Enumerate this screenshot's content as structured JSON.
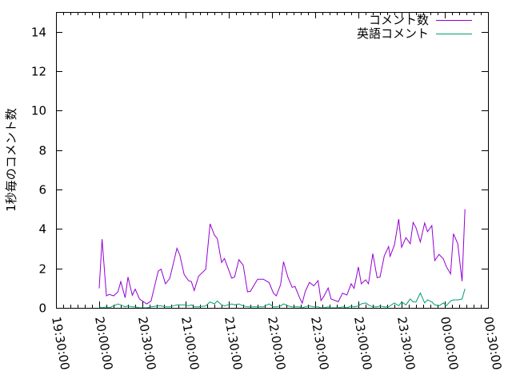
{
  "chart_data": {
    "type": "line",
    "title": "",
    "xlabel": "",
    "ylabel": "1秒毎のコメント数",
    "ylim": [
      0,
      15
    ],
    "yticks": [
      0,
      2,
      4,
      6,
      8,
      10,
      12,
      14
    ],
    "xlim": [
      "19:30:00",
      "00:30:00"
    ],
    "xticks": [
      "19:30:00",
      "20:00:00",
      "20:30:00",
      "21:00:00",
      "21:30:00",
      "22:00:00",
      "22:30:00",
      "23:00:00",
      "23:30:00",
      "00:00:00",
      "00:30:00"
    ],
    "grid": false,
    "legend_position": "top-right",
    "series": [
      {
        "name": "コメント数",
        "color": "#9400d3",
        "points": [
          [
            "20:00",
            0.99
          ],
          [
            "20:02",
            3.48
          ],
          [
            "20:05",
            0.61
          ],
          [
            "20:07",
            0.68
          ],
          [
            "20:10",
            0.61
          ],
          [
            "20:13",
            0.81
          ],
          [
            "20:15",
            1.33
          ],
          [
            "20:18",
            0.51
          ],
          [
            "20:20",
            1.56
          ],
          [
            "20:23",
            0.64
          ],
          [
            "20:25",
            0.95
          ],
          [
            "20:28",
            0.45
          ],
          [
            "20:33",
            0.2
          ],
          [
            "20:36",
            0.34
          ],
          [
            "20:41",
            1.87
          ],
          [
            "20:43",
            1.96
          ],
          [
            "20:46",
            1.22
          ],
          [
            "20:49",
            1.49
          ],
          [
            "20:54",
            3.02
          ],
          [
            "20:56",
            2.67
          ],
          [
            "20:59",
            1.69
          ],
          [
            "21:02",
            1.38
          ],
          [
            "21:04",
            1.33
          ],
          [
            "21:06",
            0.88
          ],
          [
            "21:09",
            1.6
          ],
          [
            "21:14",
            1.96
          ],
          [
            "21:17",
            4.26
          ],
          [
            "21:20",
            3.69
          ],
          [
            "21:22",
            3.52
          ],
          [
            "21:25",
            2.3
          ],
          [
            "21:27",
            2.5
          ],
          [
            "21:32",
            1.51
          ],
          [
            "21:34",
            1.56
          ],
          [
            "21:37",
            2.44
          ],
          [
            "21:40",
            2.16
          ],
          [
            "21:43",
            0.81
          ],
          [
            "21:45",
            0.84
          ],
          [
            "21:50",
            1.45
          ],
          [
            "21:54",
            1.45
          ],
          [
            "21:58",
            1.28
          ],
          [
            "22:01",
            0.74
          ],
          [
            "22:03",
            0.61
          ],
          [
            "22:06",
            1.18
          ],
          [
            "22:08",
            2.34
          ],
          [
            "22:11",
            1.56
          ],
          [
            "22:14",
            1.04
          ],
          [
            "22:16",
            1.08
          ],
          [
            "22:19",
            0.54
          ],
          [
            "22:21",
            0.24
          ],
          [
            "22:23",
            0.81
          ],
          [
            "22:26",
            1.29
          ],
          [
            "22:29",
            1.12
          ],
          [
            "22:32",
            1.38
          ],
          [
            "22:34",
            0.37
          ],
          [
            "22:36",
            0.58
          ],
          [
            "22:39",
            1.01
          ],
          [
            "22:41",
            0.45
          ],
          [
            "22:46",
            0.31
          ],
          [
            "22:49",
            0.74
          ],
          [
            "22:52",
            0.65
          ],
          [
            "22:55",
            1.22
          ],
          [
            "22:57",
            0.99
          ],
          [
            "23:00",
            2.07
          ],
          [
            "23:02",
            1.22
          ],
          [
            "23:05",
            1.42
          ],
          [
            "23:07",
            1.22
          ],
          [
            "23:10",
            2.75
          ],
          [
            "23:13",
            1.53
          ],
          [
            "23:15",
            1.56
          ],
          [
            "23:18",
            2.64
          ],
          [
            "23:21",
            3.11
          ],
          [
            "23:22",
            2.61
          ],
          [
            "23:25",
            3.18
          ],
          [
            "23:28",
            4.5
          ],
          [
            "23:30",
            3.07
          ],
          [
            "23:33",
            3.56
          ],
          [
            "23:36",
            3.25
          ],
          [
            "23:38",
            4.33
          ],
          [
            "23:40",
            4.06
          ],
          [
            "23:43",
            3.34
          ],
          [
            "23:46",
            4.3
          ],
          [
            "23:48",
            3.86
          ],
          [
            "23:51",
            4.17
          ],
          [
            "23:53",
            2.39
          ],
          [
            "23:56",
            2.71
          ],
          [
            "23:59",
            2.48
          ],
          [
            "00:01",
            2.1
          ],
          [
            "00:04",
            1.72
          ],
          [
            "00:06",
            3.76
          ],
          [
            "00:09",
            3.25
          ],
          [
            "00:12",
            1.35
          ],
          [
            "00:14",
            5.0
          ]
        ]
      },
      {
        "name": "英語コメント",
        "color": "#009e73",
        "points": [
          [
            "20:00",
            0.05
          ],
          [
            "20:02",
            0
          ],
          [
            "20:05",
            0.05
          ],
          [
            "20:07",
            0
          ],
          [
            "20:10",
            0.1
          ],
          [
            "20:13",
            0.2
          ],
          [
            "20:15",
            0.15
          ],
          [
            "20:18",
            0.05
          ],
          [
            "20:20",
            0.1
          ],
          [
            "20:23",
            0.05
          ],
          [
            "20:25",
            0.05
          ],
          [
            "20:28",
            0
          ],
          [
            "20:33",
            0
          ],
          [
            "20:36",
            0.05
          ],
          [
            "20:41",
            0.1
          ],
          [
            "20:43",
            0.1
          ],
          [
            "20:46",
            0.05
          ],
          [
            "20:49",
            0.05
          ],
          [
            "20:54",
            0.15
          ],
          [
            "20:56",
            0.15
          ],
          [
            "20:59",
            0.15
          ],
          [
            "21:02",
            0.1
          ],
          [
            "21:04",
            0.15
          ],
          [
            "21:06",
            0.05
          ],
          [
            "21:09",
            0.05
          ],
          [
            "21:14",
            0.1
          ],
          [
            "21:17",
            0.3
          ],
          [
            "21:20",
            0.2
          ],
          [
            "21:22",
            0.35
          ],
          [
            "21:25",
            0.15
          ],
          [
            "21:27",
            0.1
          ],
          [
            "21:32",
            0.2
          ],
          [
            "21:34",
            0.15
          ],
          [
            "21:37",
            0.2
          ],
          [
            "21:40",
            0.1
          ],
          [
            "21:43",
            0.05
          ],
          [
            "21:45",
            0.05
          ],
          [
            "21:50",
            0.05
          ],
          [
            "21:54",
            0.05
          ],
          [
            "21:58",
            0.2
          ],
          [
            "22:01",
            0.05
          ],
          [
            "22:03",
            0.05
          ],
          [
            "22:06",
            0.1
          ],
          [
            "22:08",
            0.2
          ],
          [
            "22:11",
            0.1
          ],
          [
            "22:14",
            0.05
          ],
          [
            "22:16",
            0.05
          ],
          [
            "22:19",
            0.05
          ],
          [
            "22:21",
            0
          ],
          [
            "22:23",
            0.05
          ],
          [
            "22:26",
            0.1
          ],
          [
            "22:29",
            0.05
          ],
          [
            "22:32",
            0.05
          ],
          [
            "22:34",
            0
          ],
          [
            "22:36",
            0
          ],
          [
            "22:39",
            0.05
          ],
          [
            "22:41",
            0
          ],
          [
            "22:46",
            0
          ],
          [
            "22:49",
            0.05
          ],
          [
            "22:52",
            0
          ],
          [
            "22:55",
            0.1
          ],
          [
            "22:57",
            0.05
          ],
          [
            "23:00",
            0.1
          ],
          [
            "23:02",
            0.2
          ],
          [
            "23:05",
            0.25
          ],
          [
            "23:07",
            0.15
          ],
          [
            "23:10",
            0.05
          ],
          [
            "23:13",
            0.05
          ],
          [
            "23:15",
            0.1
          ],
          [
            "23:18",
            0.05
          ],
          [
            "23:21",
            0.05
          ],
          [
            "23:22",
            0.1
          ],
          [
            "23:25",
            0.25
          ],
          [
            "23:28",
            0.1
          ],
          [
            "23:30",
            0.3
          ],
          [
            "23:33",
            0.15
          ],
          [
            "23:36",
            0.45
          ],
          [
            "23:38",
            0.3
          ],
          [
            "23:40",
            0.3
          ],
          [
            "23:43",
            0.75
          ],
          [
            "23:46",
            0.25
          ],
          [
            "23:48",
            0.4
          ],
          [
            "23:51",
            0.3
          ],
          [
            "23:53",
            0.15
          ],
          [
            "23:56",
            0.1
          ],
          [
            "23:59",
            0.25
          ],
          [
            "00:01",
            0.1
          ],
          [
            "00:04",
            0.35
          ],
          [
            "00:06",
            0.4
          ],
          [
            "00:09",
            0.4
          ],
          [
            "00:12",
            0.45
          ],
          [
            "00:14",
            0.97
          ]
        ]
      }
    ]
  }
}
